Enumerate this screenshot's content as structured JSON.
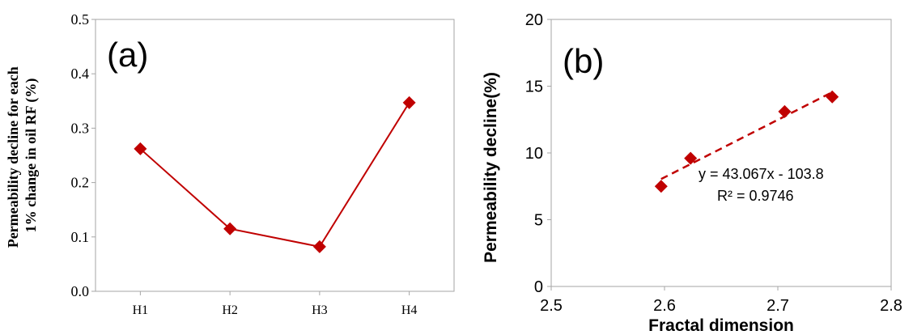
{
  "chart_data": [
    {
      "type": "line",
      "panel_label": "(a)",
      "ylabel_line1": "Permeability decline for each",
      "ylabel_line2": "1% change in oil RF (%)",
      "xlabel": "",
      "categories": [
        "H1",
        "H2",
        "H3",
        "H4"
      ],
      "values": [
        0.262,
        0.115,
        0.082,
        0.347
      ],
      "ylim": [
        0.0,
        0.5
      ],
      "yticks": [
        "0.0",
        "0.1",
        "0.2",
        "0.3",
        "0.4",
        "0.5"
      ],
      "grid": false,
      "marker": "diamond",
      "color": "#C00000"
    },
    {
      "type": "scatter",
      "panel_label": "(b)",
      "xlabel": "Fractal dimension",
      "ylabel": "Permeability decline(%)",
      "x": [
        2.597,
        2.623,
        2.706,
        2.748
      ],
      "y": [
        7.5,
        9.6,
        13.1,
        14.2
      ],
      "xlim": [
        2.5,
        2.8
      ],
      "ylim": [
        0,
        20
      ],
      "xticks": [
        "2.5",
        "2.6",
        "2.7",
        "2.8"
      ],
      "yticks": [
        "0",
        "5",
        "10",
        "15",
        "20"
      ],
      "trendline": {
        "slope": 43.067,
        "intercept": -103.8,
        "style": "dashed"
      },
      "equation": "y = 43.067x - 103.8",
      "r_squared": "R² = 0.9746",
      "grid": false,
      "marker": "diamond",
      "color": "#C00000"
    }
  ]
}
